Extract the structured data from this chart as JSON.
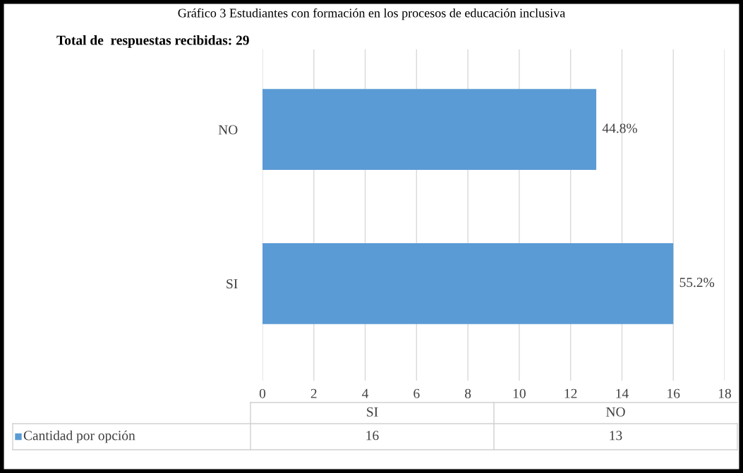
{
  "chart_data": {
    "type": "bar",
    "orientation": "horizontal",
    "title": "Gráfico 3 Estudiantes con formación en los procesos de educación inclusiva",
    "categories": [
      "NO",
      "SI"
    ],
    "series": [
      {
        "name": "Cantidad por opción",
        "color": "#5b9bd5",
        "values": [
          13,
          16
        ]
      }
    ],
    "value_labels": [
      "44.8%",
      "55.2%"
    ],
    "annotations": [
      "Total de  respuestas recibidas: 29",
      "16",
      "13"
    ],
    "xlim": [
      0,
      18
    ],
    "xticks": [
      0,
      2,
      4,
      6,
      8,
      10,
      12,
      14,
      16,
      18
    ],
    "grid": "x",
    "legend": "bottom"
  }
}
